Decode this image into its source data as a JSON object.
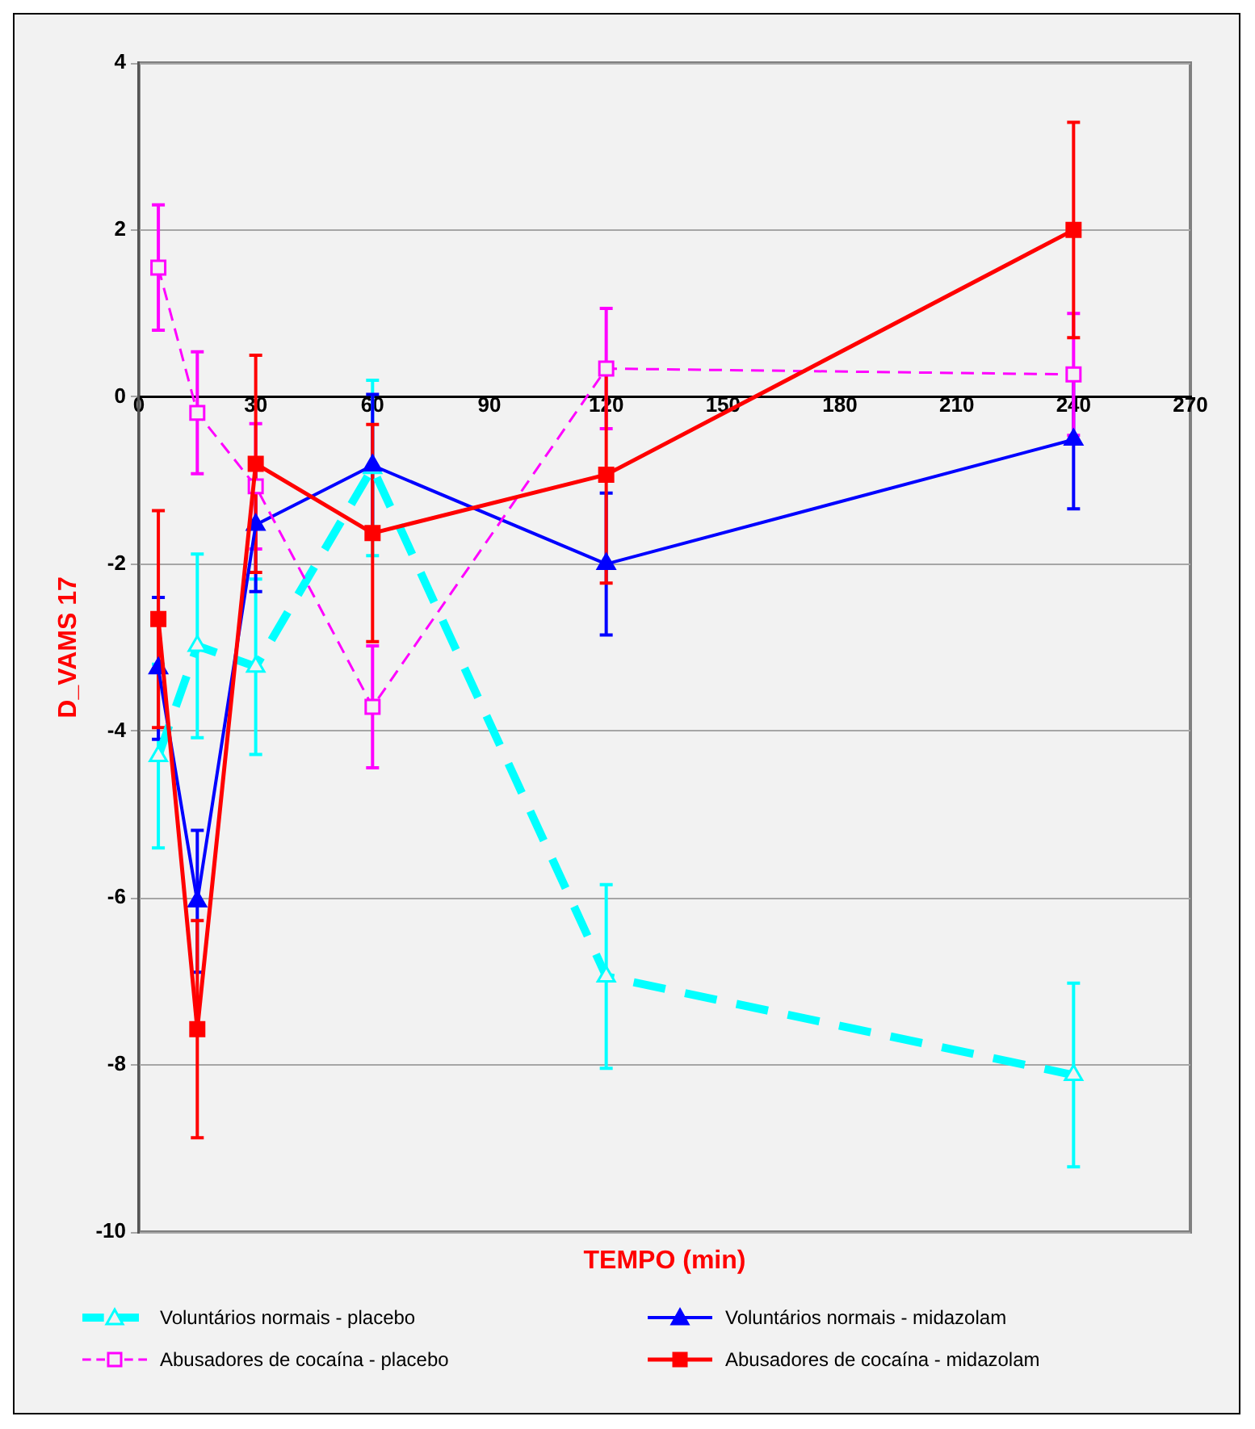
{
  "chart_data": {
    "type": "line",
    "xlabel": "TEMPO (min)",
    "ylabel": "D_VAMS 17",
    "x": [
      5,
      15,
      30,
      60,
      120,
      240
    ],
    "xlim": [
      0,
      270
    ],
    "xticks": [
      0,
      30,
      60,
      90,
      120,
      150,
      180,
      210,
      240,
      270
    ],
    "ylim": [
      -10,
      4
    ],
    "yticks": [
      -10,
      -8,
      -6,
      -4,
      -2,
      0,
      2,
      4
    ],
    "grid": "y",
    "legend": "bottom",
    "series": [
      {
        "name": "Voluntários normais - placebo",
        "color": "#00ffff",
        "marker": "triangle",
        "line_style": "dashed",
        "values": [
          -4.3,
          -2.98,
          -3.23,
          -0.85,
          -6.94,
          -8.12
        ],
        "errors": [
          1.1,
          1.1,
          1.05,
          1.05,
          1.1,
          1.1
        ]
      },
      {
        "name": "Voluntários normais - midazolam",
        "color": "#0000ff",
        "marker": "triangle",
        "line_style": "solid",
        "values": [
          -3.25,
          -6.04,
          -1.53,
          -0.82,
          -2.0,
          -0.51
        ],
        "errors": [
          0.85,
          0.85,
          0.8,
          0.85,
          0.85,
          0.83
        ]
      },
      {
        "name": "Abusadores de cocaína - placebo",
        "color": "#ff00ff",
        "marker": "square",
        "line_style": "dashed",
        "values": [
          1.55,
          -0.19,
          -1.07,
          -3.71,
          0.34,
          0.27
        ],
        "errors": [
          0.75,
          0.73,
          0.75,
          0.73,
          0.72,
          0.73
        ]
      },
      {
        "name": "Abusadores de cocaína - midazolam",
        "color": "#ff0000",
        "marker": "square",
        "line_style": "solid",
        "values": [
          -2.66,
          -7.57,
          -0.8,
          -1.63,
          -0.93,
          2.0
        ],
        "errors": [
          1.3,
          1.3,
          1.3,
          1.3,
          1.3,
          1.29
        ]
      }
    ]
  }
}
